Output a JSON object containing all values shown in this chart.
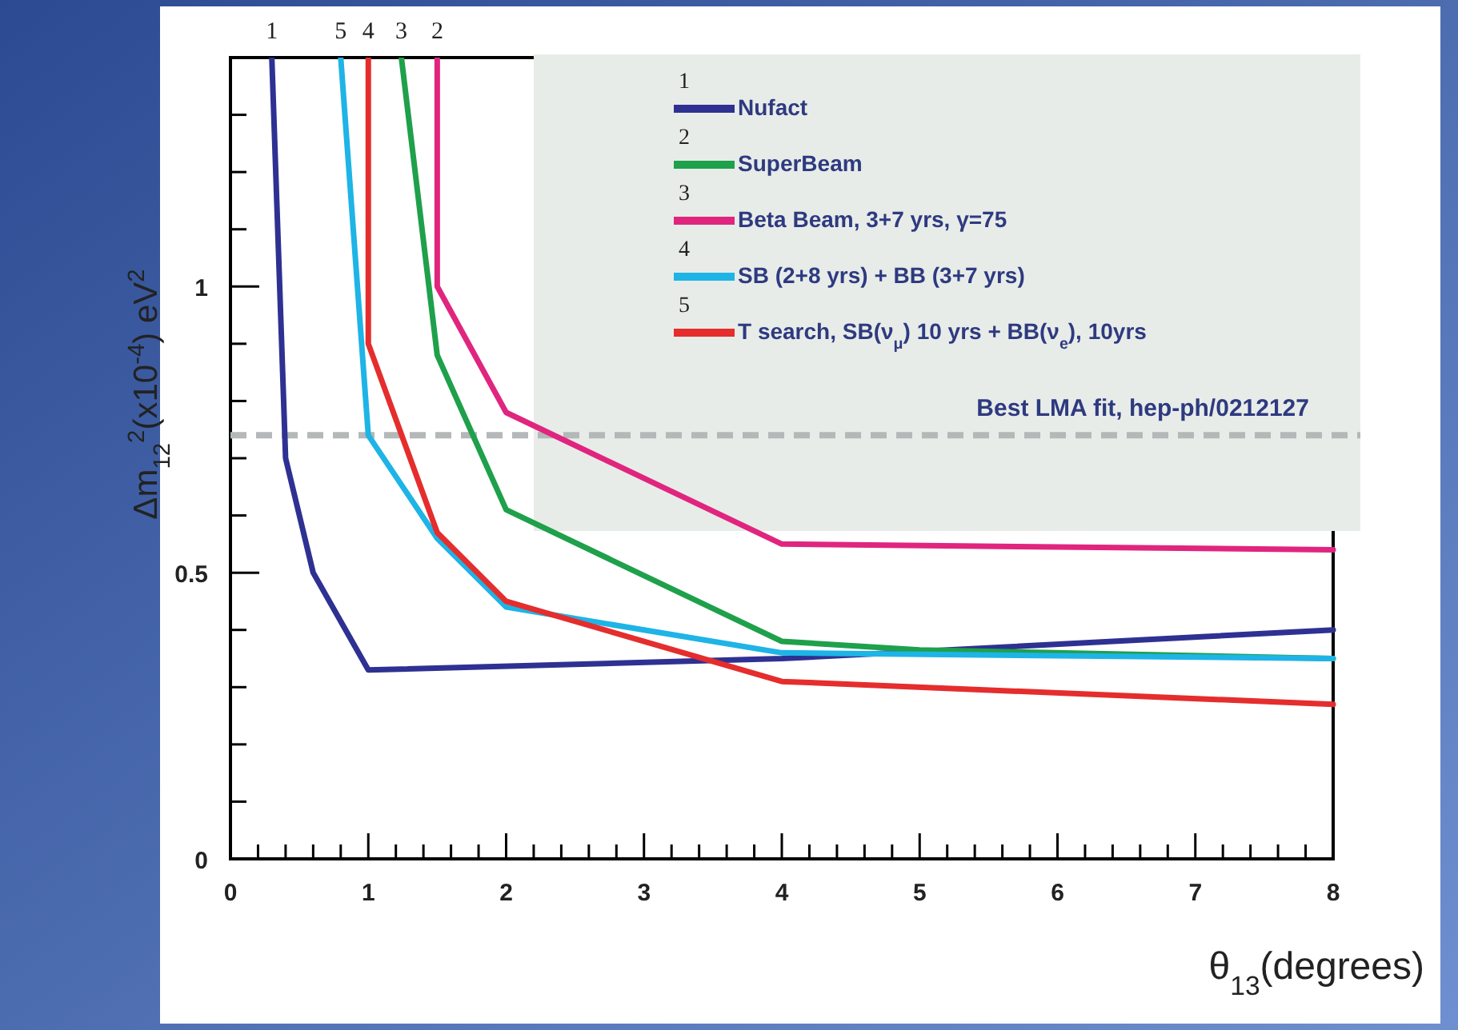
{
  "chart_data": {
    "type": "line",
    "xlabel": "θ$_{13}$(degrees)",
    "ylabel": "Δm$_{12}$$^{2}$(x10$^{-4}$) eV$^{2}$",
    "series": [
      {
        "name": "Nufact",
        "color": "#2e3192",
        "x": [
          0.3,
          0.4,
          0.6,
          1,
          4,
          8
        ],
        "values": [
          1.4,
          0.7,
          0.5,
          0.33,
          0.35,
          0.4
        ]
      },
      {
        "name": "SuperBeam",
        "color": "#1fa04b",
        "x": [
          1.24,
          1.5,
          2,
          4,
          5,
          8
        ],
        "values": [
          1.4,
          0.88,
          0.61,
          0.38,
          0.365,
          0.35
        ]
      },
      {
        "name": "Beta Beam, 3+7 yrs, γ=75",
        "color": "#e0257f",
        "x": [
          1.5,
          1.5,
          2,
          4,
          8
        ],
        "values": [
          1.4,
          1.0,
          0.78,
          0.55,
          0.54
        ]
      },
      {
        "name": "SB (2+8 yrs) + BB (3+7 yrs)",
        "color": "#1eb4e6",
        "x": [
          0.8,
          1,
          1.5,
          2,
          4,
          8
        ],
        "values": [
          1.4,
          0.74,
          0.56,
          0.44,
          0.36,
          0.35
        ]
      },
      {
        "name": "T search, SB(ν$_{μ}$) 10 yrs + BB(ν$_{e}$), 10yrs",
        "color": "#e52d2d",
        "x": [
          1,
          1,
          1.5,
          2,
          4,
          8
        ],
        "values": [
          1.4,
          0.9,
          0.57,
          0.45,
          0.31,
          0.27
        ]
      }
    ],
    "xlim": [
      0,
      8
    ],
    "ylim": [
      0,
      1.4
    ],
    "xticks": [
      0,
      {
        "value": 0.2,
        "label": null
      },
      {
        "value": 0.4,
        "label": null
      },
      {
        "value": 0.6,
        "label": null
      },
      {
        "value": 0.8,
        "label": null
      },
      1,
      {
        "value": 1.2,
        "label": null
      },
      {
        "value": 1.4,
        "label": null
      },
      {
        "value": 1.6,
        "label": null
      },
      {
        "value": 1.8,
        "label": null
      },
      2,
      {
        "value": 2.2,
        "label": null
      },
      {
        "value": 2.4,
        "label": null
      },
      {
        "value": 2.6,
        "label": null
      },
      {
        "value": 2.8,
        "label": null
      },
      3,
      {
        "value": 3.2,
        "label": null
      },
      {
        "value": 3.4,
        "label": null
      },
      {
        "value": 3.6,
        "label": null
      },
      {
        "value": 3.8,
        "label": null
      },
      4,
      {
        "value": 4.2,
        "label": null
      },
      {
        "value": 4.4,
        "label": null
      },
      {
        "value": 4.6,
        "label": null
      },
      {
        "value": 4.8,
        "label": null
      },
      5,
      {
        "value": 5.2,
        "label": null
      },
      {
        "value": 5.4,
        "label": null
      },
      {
        "value": 5.6,
        "label": null
      },
      {
        "value": 5.8,
        "label": null
      },
      6,
      {
        "value": 6.2,
        "label": null
      },
      {
        "value": 6.4,
        "label": null
      },
      {
        "value": 6.6,
        "label": null
      },
      {
        "value": 6.8,
        "label": null
      },
      7,
      {
        "value": 7.2,
        "label": null
      },
      {
        "value": 7.4,
        "label": null
      },
      {
        "value": 7.6,
        "label": null
      },
      {
        "value": 7.8,
        "label": null
      },
      8
    ],
    "yticks": [
      0,
      {
        "value": 0.1,
        "label": null
      },
      {
        "value": 0.2,
        "label": null
      },
      {
        "value": 0.3,
        "label": null
      },
      {
        "value": 0.4,
        "label": null
      },
      0.5,
      {
        "value": 0.6,
        "label": null
      },
      {
        "value": 0.7,
        "label": null
      },
      {
        "value": 0.8,
        "label": null
      },
      {
        "value": 0.9,
        "label": null
      },
      1,
      {
        "value": 1.1,
        "label": null
      },
      {
        "value": 1.2,
        "label": null
      },
      {
        "value": 1.3,
        "label": null
      }
    ],
    "ref_lines": [
      {
        "axis": "y",
        "value": 0.74,
        "label": "Best LMA fit,  hep-ph/0212127",
        "color": "#b4b8b8",
        "line_style": "dashed"
      }
    ],
    "annotations": [
      {
        "text": "1",
        "x": 0.3,
        "y": 1.4
      },
      {
        "text": "5",
        "x": 0.8,
        "y": 1.4
      },
      {
        "text": "4",
        "x": 1.0,
        "y": 1.4
      },
      {
        "text": "3",
        "x": 1.24,
        "y": 1.4
      },
      {
        "text": "2",
        "x": 1.5,
        "y": 1.4
      },
      "1",
      "2",
      "3",
      "4",
      "5"
    ],
    "legend": "top right",
    "grid": false,
    "marker": "none",
    "line_style": "solid"
  }
}
